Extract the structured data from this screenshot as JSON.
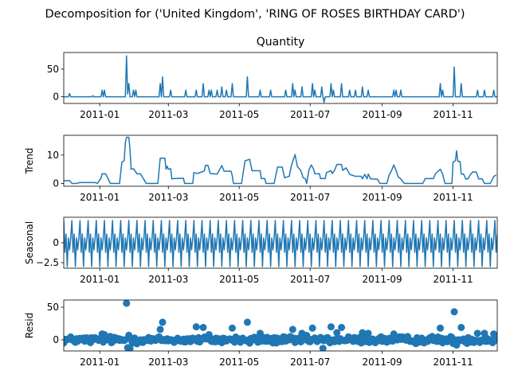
{
  "figure": {
    "suptitle": "Decomposition for ('United Kingdom', 'RING OF ROSES BIRTHDAY CARD')"
  },
  "colors": {
    "series": "#1f77b4",
    "axis": "#000000"
  },
  "chart_data": [
    {
      "type": "line",
      "title": "Quantity",
      "ylabel": "",
      "x_range": [
        "2010-12-01",
        "2011-12-09"
      ],
      "ylim": [
        -12,
        80
      ],
      "y_ticks": [
        0,
        50
      ],
      "x_ticks": [
        "2011-01",
        "2011-03",
        "2011-05",
        "2011-07",
        "2011-09",
        "2011-11"
      ],
      "points": [
        [
          "2010-12-01",
          0
        ],
        [
          "2010-12-05",
          0
        ],
        [
          "2010-12-06",
          6
        ],
        [
          "2010-12-07",
          0
        ],
        [
          "2010-12-25",
          0
        ],
        [
          "2010-12-26",
          2
        ],
        [
          "2010-12-27",
          0
        ],
        [
          "2011-01-02",
          0
        ],
        [
          "2011-01-03",
          12
        ],
        [
          "2011-01-04",
          0
        ],
        [
          "2011-01-05",
          12
        ],
        [
          "2011-01-06",
          0
        ],
        [
          "2011-01-23",
          0
        ],
        [
          "2011-01-24",
          74
        ],
        [
          "2011-01-25",
          5
        ],
        [
          "2011-01-26",
          24
        ],
        [
          "2011-01-27",
          0
        ],
        [
          "2011-01-29",
          0
        ],
        [
          "2011-01-30",
          12
        ],
        [
          "2011-01-31",
          0
        ],
        [
          "2011-02-01",
          12
        ],
        [
          "2011-02-02",
          0
        ],
        [
          "2011-02-21",
          0
        ],
        [
          "2011-02-22",
          24
        ],
        [
          "2011-02-23",
          0
        ],
        [
          "2011-02-24",
          36
        ],
        [
          "2011-02-25",
          0
        ],
        [
          "2011-03-02",
          0
        ],
        [
          "2011-03-03",
          12
        ],
        [
          "2011-03-04",
          0
        ],
        [
          "2011-03-15",
          0
        ],
        [
          "2011-03-16",
          12
        ],
        [
          "2011-03-17",
          0
        ],
        [
          "2011-03-24",
          0
        ],
        [
          "2011-03-25",
          12
        ],
        [
          "2011-03-26",
          0
        ],
        [
          "2011-03-30",
          0
        ],
        [
          "2011-03-31",
          24
        ],
        [
          "2011-04-01",
          0
        ],
        [
          "2011-04-04",
          0
        ],
        [
          "2011-04-05",
          12
        ],
        [
          "2011-04-06",
          0
        ],
        [
          "2011-04-07",
          12
        ],
        [
          "2011-04-08",
          0
        ],
        [
          "2011-04-11",
          0
        ],
        [
          "2011-04-12",
          12
        ],
        [
          "2011-04-13",
          0
        ],
        [
          "2011-04-15",
          0
        ],
        [
          "2011-04-16",
          18
        ],
        [
          "2011-04-17",
          0
        ],
        [
          "2011-04-19",
          0
        ],
        [
          "2011-04-20",
          12
        ],
        [
          "2011-04-21",
          0
        ],
        [
          "2011-04-24",
          0
        ],
        [
          "2011-04-25",
          24
        ],
        [
          "2011-04-26",
          0
        ],
        [
          "2011-05-07",
          0
        ],
        [
          "2011-05-08",
          36
        ],
        [
          "2011-05-09",
          0
        ],
        [
          "2011-05-18",
          0
        ],
        [
          "2011-05-19",
          12
        ],
        [
          "2011-05-20",
          0
        ],
        [
          "2011-05-27",
          0
        ],
        [
          "2011-05-28",
          12
        ],
        [
          "2011-05-29",
          0
        ],
        [
          "2011-06-09",
          0
        ],
        [
          "2011-06-10",
          12
        ],
        [
          "2011-06-11",
          0
        ],
        [
          "2011-06-15",
          0
        ],
        [
          "2011-06-16",
          24
        ],
        [
          "2011-06-17",
          0
        ],
        [
          "2011-06-18",
          12
        ],
        [
          "2011-06-19",
          0
        ],
        [
          "2011-06-23",
          0
        ],
        [
          "2011-06-24",
          18
        ],
        [
          "2011-06-25",
          0
        ],
        [
          "2011-07-02",
          0
        ],
        [
          "2011-07-03",
          24
        ],
        [
          "2011-07-04",
          0
        ],
        [
          "2011-07-05",
          12
        ],
        [
          "2011-07-06",
          0
        ],
        [
          "2011-07-10",
          0
        ],
        [
          "2011-07-11",
          18
        ],
        [
          "2011-07-12",
          0
        ],
        [
          "2011-07-13",
          -10
        ],
        [
          "2011-07-14",
          0
        ],
        [
          "2011-07-18",
          0
        ],
        [
          "2011-07-19",
          24
        ],
        [
          "2011-07-20",
          0
        ],
        [
          "2011-07-21",
          12
        ],
        [
          "2011-07-22",
          0
        ],
        [
          "2011-07-27",
          0
        ],
        [
          "2011-07-28",
          24
        ],
        [
          "2011-07-29",
          0
        ],
        [
          "2011-08-03",
          0
        ],
        [
          "2011-08-04",
          12
        ],
        [
          "2011-08-05",
          0
        ],
        [
          "2011-08-08",
          0
        ],
        [
          "2011-08-09",
          12
        ],
        [
          "2011-08-10",
          0
        ],
        [
          "2011-08-14",
          0
        ],
        [
          "2011-08-15",
          18
        ],
        [
          "2011-08-16",
          0
        ],
        [
          "2011-08-19",
          0
        ],
        [
          "2011-08-20",
          12
        ],
        [
          "2011-08-21",
          0
        ],
        [
          "2011-09-10",
          0
        ],
        [
          "2011-09-11",
          12
        ],
        [
          "2011-09-12",
          0
        ],
        [
          "2011-09-13",
          12
        ],
        [
          "2011-09-14",
          0
        ],
        [
          "2011-09-16",
          0
        ],
        [
          "2011-09-17",
          12
        ],
        [
          "2011-09-18",
          0
        ],
        [
          "2011-10-20",
          0
        ],
        [
          "2011-10-21",
          24
        ],
        [
          "2011-10-22",
          0
        ],
        [
          "2011-10-23",
          12
        ],
        [
          "2011-10-24",
          0
        ],
        [
          "2011-11-01",
          0
        ],
        [
          "2011-11-02",
          54
        ],
        [
          "2011-11-03",
          0
        ],
        [
          "2011-11-07",
          0
        ],
        [
          "2011-11-08",
          24
        ],
        [
          "2011-11-09",
          0
        ],
        [
          "2011-11-21",
          0
        ],
        [
          "2011-11-22",
          12
        ],
        [
          "2011-11-23",
          0
        ],
        [
          "2011-11-27",
          0
        ],
        [
          "2011-11-28",
          12
        ],
        [
          "2011-11-29",
          0
        ],
        [
          "2011-12-05",
          0
        ],
        [
          "2011-12-06",
          12
        ],
        [
          "2011-12-07",
          0
        ],
        [
          "2011-12-09",
          0
        ]
      ]
    },
    {
      "type": "line",
      "title": "",
      "ylabel": "Trend",
      "x_range": [
        "2010-12-01",
        "2011-12-09"
      ],
      "ylim": [
        -1,
        17
      ],
      "y_ticks": [
        0,
        10
      ],
      "x_ticks": [
        "2011-01",
        "2011-03",
        "2011-05",
        "2011-07",
        "2011-09",
        "2011-11"
      ],
      "points": [
        [
          "2010-12-01",
          1
        ],
        [
          "2010-12-03",
          0.9
        ],
        [
          "2010-12-04",
          1
        ],
        [
          "2010-12-06",
          1
        ],
        [
          "2010-12-08",
          0
        ],
        [
          "2010-12-12",
          0
        ],
        [
          "2010-12-15",
          0.3
        ],
        [
          "2010-12-28",
          0.3
        ],
        [
          "2010-12-30",
          0
        ],
        [
          "2011-01-02",
          1.8
        ],
        [
          "2011-01-03",
          3.4
        ],
        [
          "2011-01-06",
          3.4
        ],
        [
          "2011-01-08",
          1.8
        ],
        [
          "2011-01-10",
          0
        ],
        [
          "2011-01-18",
          0
        ],
        [
          "2011-01-20",
          7.5
        ],
        [
          "2011-01-22",
          8
        ],
        [
          "2011-01-23",
          14.5
        ],
        [
          "2011-01-24",
          16.3
        ],
        [
          "2011-01-26",
          16.3
        ],
        [
          "2011-01-27",
          12
        ],
        [
          "2011-01-28",
          5
        ],
        [
          "2011-01-30",
          5.2
        ],
        [
          "2011-02-02",
          3.4
        ],
        [
          "2011-02-05",
          3.4
        ],
        [
          "2011-02-10",
          0
        ],
        [
          "2011-02-20",
          0
        ],
        [
          "2011-02-22",
          8.9
        ],
        [
          "2011-02-26",
          8.9
        ],
        [
          "2011-02-27",
          5
        ],
        [
          "2011-02-28",
          6.1
        ],
        [
          "2011-03-01",
          5
        ],
        [
          "2011-03-03",
          5.2
        ],
        [
          "2011-03-04",
          1.6
        ],
        [
          "2011-03-06",
          1.7
        ],
        [
          "2011-03-14",
          1.8
        ],
        [
          "2011-03-15",
          0
        ],
        [
          "2011-03-22",
          0
        ],
        [
          "2011-03-23",
          3.8
        ],
        [
          "2011-03-26",
          3.5
        ],
        [
          "2011-03-30",
          4.1
        ],
        [
          "2011-04-01",
          4.4
        ],
        [
          "2011-04-02",
          6.4
        ],
        [
          "2011-04-04",
          6.4
        ],
        [
          "2011-04-06",
          3.5
        ],
        [
          "2011-04-12",
          3.3
        ],
        [
          "2011-04-16",
          6.3
        ],
        [
          "2011-04-18",
          4.3
        ],
        [
          "2011-04-24",
          4.3
        ],
        [
          "2011-04-25",
          2.7
        ],
        [
          "2011-04-26",
          0
        ],
        [
          "2011-05-03",
          0
        ],
        [
          "2011-05-06",
          8
        ],
        [
          "2011-05-10",
          8.5
        ],
        [
          "2011-05-12",
          4.5
        ],
        [
          "2011-05-19",
          4.5
        ],
        [
          "2011-05-20",
          1.7
        ],
        [
          "2011-05-23",
          1.7
        ],
        [
          "2011-05-24",
          0
        ],
        [
          "2011-05-31",
          0
        ],
        [
          "2011-06-03",
          5.8
        ],
        [
          "2011-06-07",
          5.8
        ],
        [
          "2011-06-09",
          2
        ],
        [
          "2011-06-13",
          2.5
        ],
        [
          "2011-06-15",
          6.5
        ],
        [
          "2011-06-18",
          10.2
        ],
        [
          "2011-06-20",
          6
        ],
        [
          "2011-06-23",
          4.5
        ],
        [
          "2011-06-25",
          2
        ],
        [
          "2011-06-27",
          1.6
        ],
        [
          "2011-06-28",
          0
        ],
        [
          "2011-06-30",
          4.8
        ],
        [
          "2011-07-02",
          6.5
        ],
        [
          "2011-07-04",
          5
        ],
        [
          "2011-07-05",
          3.4
        ],
        [
          "2011-07-09",
          3.4
        ],
        [
          "2011-07-10",
          1.7
        ],
        [
          "2011-07-14",
          1.7
        ],
        [
          "2011-07-15",
          3.8
        ],
        [
          "2011-07-19",
          4.5
        ],
        [
          "2011-07-20",
          3.5
        ],
        [
          "2011-07-22",
          4.6
        ],
        [
          "2011-07-24",
          6.7
        ],
        [
          "2011-07-28",
          6.7
        ],
        [
          "2011-07-29",
          4.6
        ],
        [
          "2011-08-01",
          5.5
        ],
        [
          "2011-08-04",
          3.2
        ],
        [
          "2011-08-09",
          2.5
        ],
        [
          "2011-08-14",
          2.5
        ],
        [
          "2011-08-15",
          1.6
        ],
        [
          "2011-08-17",
          3.2
        ],
        [
          "2011-08-19",
          1.6
        ],
        [
          "2011-08-20",
          3.3
        ],
        [
          "2011-08-22",
          1.6
        ],
        [
          "2011-08-28",
          1.5
        ],
        [
          "2011-08-30",
          0
        ],
        [
          "2011-09-05",
          0
        ],
        [
          "2011-09-07",
          3
        ],
        [
          "2011-09-09",
          4.5
        ],
        [
          "2011-09-11",
          6.5
        ],
        [
          "2011-09-13",
          4.5
        ],
        [
          "2011-09-15",
          2.2
        ],
        [
          "2011-09-17",
          1.6
        ],
        [
          "2011-09-20",
          0
        ],
        [
          "2011-10-06",
          0
        ],
        [
          "2011-10-08",
          1.7
        ],
        [
          "2011-10-15",
          1.7
        ],
        [
          "2011-10-17",
          3.5
        ],
        [
          "2011-10-21",
          5
        ],
        [
          "2011-10-23",
          3.3
        ],
        [
          "2011-10-25",
          0
        ],
        [
          "2011-10-31",
          0
        ],
        [
          "2011-11-01",
          7.5
        ],
        [
          "2011-11-03",
          8
        ],
        [
          "2011-11-04",
          11.5
        ],
        [
          "2011-11-05",
          7.8
        ],
        [
          "2011-11-07",
          7.8
        ],
        [
          "2011-11-08",
          3.3
        ],
        [
          "2011-11-10",
          3.3
        ],
        [
          "2011-11-12",
          1.5
        ],
        [
          "2011-11-14",
          1.7
        ],
        [
          "2011-11-16",
          3.2
        ],
        [
          "2011-11-18",
          4.1
        ],
        [
          "2011-11-21",
          4
        ],
        [
          "2011-11-23",
          1.6
        ],
        [
          "2011-11-26",
          1.6
        ],
        [
          "2011-11-28",
          0
        ],
        [
          "2011-12-03",
          0
        ],
        [
          "2011-12-06",
          2.4
        ],
        [
          "2011-12-08",
          3
        ]
      ]
    },
    {
      "type": "line",
      "title": "",
      "ylabel": "Seasonal",
      "x_range": [
        "2010-12-01",
        "2011-12-09"
      ],
      "ylim": [
        -3.2,
        3.2
      ],
      "y_ticks": [
        -2.5,
        0.0
      ],
      "x_ticks": [
        "2011-01",
        "2011-03",
        "2011-05",
        "2011-07",
        "2011-09",
        "2011-11"
      ],
      "period_days": 7,
      "pattern": [
        2.8,
        -1.2,
        1.1,
        -3.0,
        0.6,
        -0.9,
        0.6
      ]
    },
    {
      "type": "scatter",
      "title": "",
      "ylabel": "Resid",
      "x_range": [
        "2010-12-01",
        "2011-12-09"
      ],
      "ylim": [
        -17,
        61
      ],
      "y_ticks": [
        0,
        50
      ],
      "x_ticks": [
        "2011-01",
        "2011-03",
        "2011-05",
        "2011-07",
        "2011-09",
        "2011-11"
      ],
      "baseline": 0,
      "points": [
        [
          "2011-01-24",
          56
        ],
        [
          "2011-11-02",
          43
        ],
        [
          "2011-02-24",
          27
        ],
        [
          "2011-05-08",
          27
        ],
        [
          "2011-11-08",
          19
        ],
        [
          "2011-02-22",
          16
        ],
        [
          "2011-06-16",
          16
        ],
        [
          "2011-07-03",
          18
        ],
        [
          "2011-07-19",
          20
        ],
        [
          "2011-07-28",
          19
        ],
        [
          "2011-03-25",
          20
        ],
        [
          "2011-03-31",
          19
        ],
        [
          "2011-04-25",
          18
        ],
        [
          "2011-10-21",
          18
        ],
        [
          "2011-07-24",
          11
        ],
        [
          "2011-08-15",
          11
        ],
        [
          "2011-08-20",
          10
        ],
        [
          "2011-09-11",
          9
        ],
        [
          "2011-06-24",
          10
        ],
        [
          "2011-05-19",
          10
        ],
        [
          "2011-04-05",
          8
        ],
        [
          "2011-01-03",
          9
        ],
        [
          "2011-01-05",
          8
        ],
        [
          "2011-11-22",
          10
        ],
        [
          "2011-11-28",
          10
        ],
        [
          "2011-12-06",
          9
        ],
        [
          "2011-01-26",
          7
        ],
        [
          "2011-07-12",
          -13
        ],
        [
          "2011-01-25",
          -12
        ],
        [
          "2011-01-27",
          -13
        ],
        [
          "2011-11-04",
          -8
        ],
        [
          "2011-05-10",
          -5
        ],
        [
          "2011-06-18",
          -4
        ]
      ],
      "noise_amplitude": 4
    }
  ]
}
